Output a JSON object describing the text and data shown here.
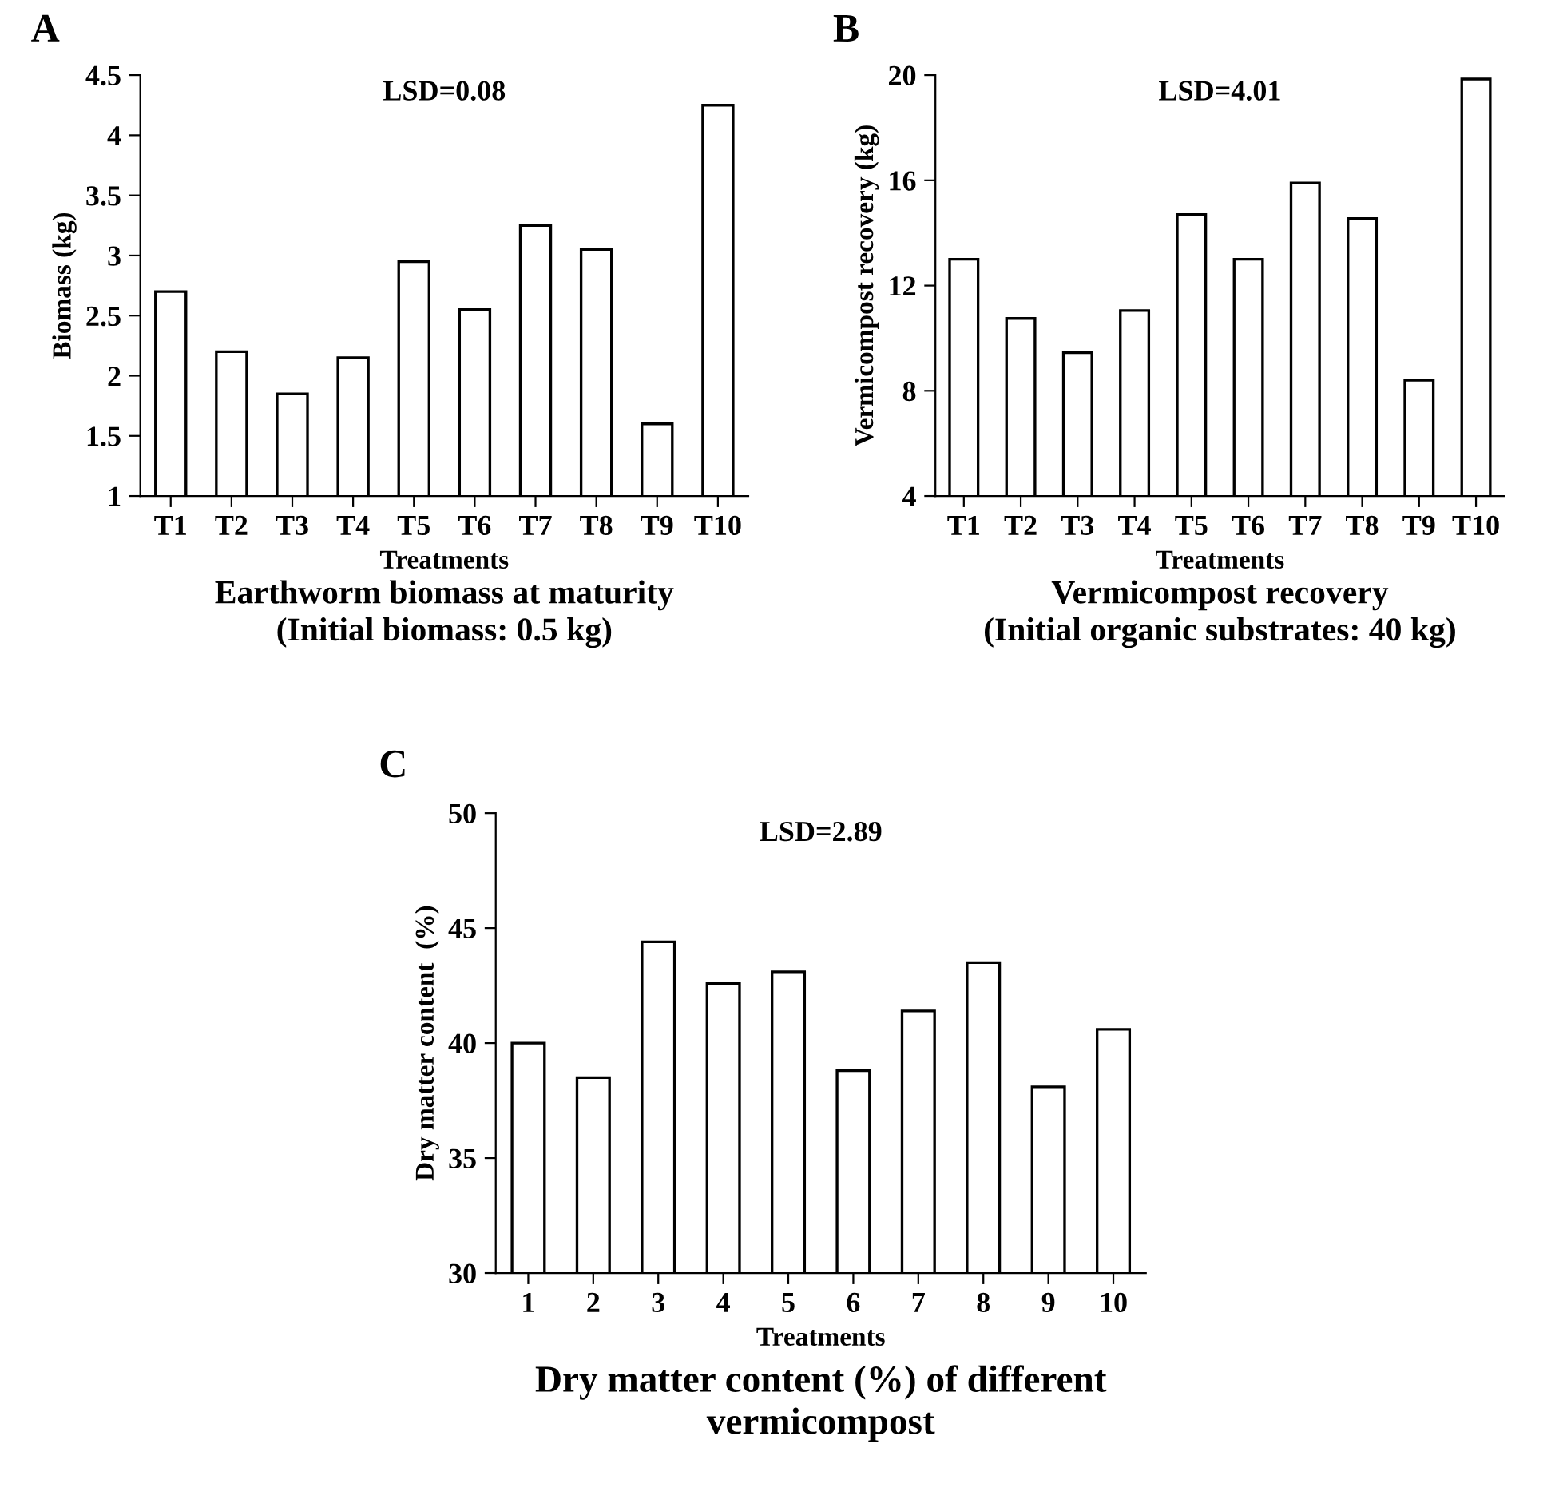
{
  "chart_data": [
    {
      "type": "bar",
      "title": "LSD=0.08",
      "xlabel": "Treatments",
      "ylabel": "Biomass (kg)",
      "annotations": [
        "A",
        "Earthworm biomass at maturity\n(Initial biomass: 0.5 kg)"
      ],
      "categories": [
        "T1",
        "T2",
        "T3",
        "T4",
        "T5",
        "T6",
        "T7",
        "T8",
        "T9",
        "T10"
      ],
      "values": [
        2.7,
        2.2,
        1.85,
        2.15,
        2.95,
        2.55,
        3.25,
        3.05,
        1.6,
        4.25
      ],
      "color": "#ffffff",
      "ylim": [
        1,
        4.5
      ],
      "yticks": [
        1,
        1.5,
        2,
        2.5,
        3,
        3.5,
        4,
        4.5
      ],
      "grid": false
    },
    {
      "type": "bar",
      "title": "LSD=4.01",
      "xlabel": "Treatments",
      "ylabel": "Vermicompost recovery (kg)",
      "annotations": [
        "B",
        "Vermicompost recovery\n(Initial organic substrates: 40 kg)"
      ],
      "categories": [
        "T1",
        "T2",
        "T3",
        "T4",
        "T5",
        "T6",
        "T7",
        "T8",
        "T9",
        "T10"
      ],
      "values": [
        13.0,
        10.75,
        9.45,
        11.05,
        14.7,
        13.0,
        15.9,
        14.55,
        8.4,
        19.85
      ],
      "color": "#ffffff",
      "ylim": [
        4,
        20
      ],
      "yticks": [
        4,
        8,
        12,
        16,
        20
      ],
      "grid": false
    },
    {
      "type": "bar",
      "title": "LSD=2.89",
      "xlabel": "Treatments",
      "ylabel": "Dry matter content  (%)",
      "annotations": [
        "C",
        "Dry matter content (%) of different\nvermicompost"
      ],
      "categories": [
        "1",
        "2",
        "3",
        "4",
        "5",
        "6",
        "7",
        "8",
        "9",
        "10"
      ],
      "values": [
        40.0,
        38.5,
        44.4,
        42.6,
        43.1,
        38.8,
        41.4,
        43.5,
        38.1,
        40.6
      ],
      "color": "#ffffff",
      "ylim": [
        30,
        50
      ],
      "yticks": [
        30,
        35,
        40,
        45,
        50
      ],
      "grid": false
    }
  ]
}
